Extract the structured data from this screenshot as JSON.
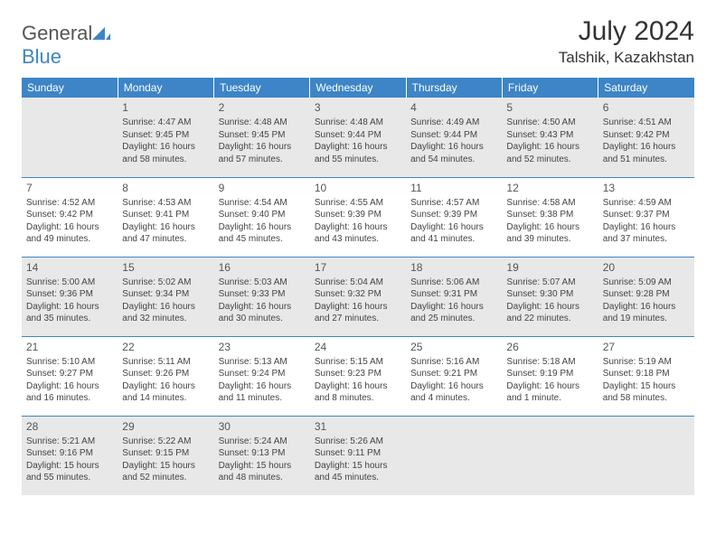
{
  "brand": {
    "text1": "General",
    "text2": "Blue"
  },
  "title": "July 2024",
  "location": "Talshik, Kazakhstan",
  "colors": {
    "header_bg": "#3d85c6",
    "header_fg": "#ffffff",
    "shade_bg": "#e8e8e8",
    "text": "#333333"
  },
  "weekdays": [
    "Sunday",
    "Monday",
    "Tuesday",
    "Wednesday",
    "Thursday",
    "Friday",
    "Saturday"
  ],
  "start_offset": 1,
  "days": [
    {
      "n": 1,
      "sr": "4:47 AM",
      "ss": "9:45 PM",
      "dl": "16 hours and 58 minutes."
    },
    {
      "n": 2,
      "sr": "4:48 AM",
      "ss": "9:45 PM",
      "dl": "16 hours and 57 minutes."
    },
    {
      "n": 3,
      "sr": "4:48 AM",
      "ss": "9:44 PM",
      "dl": "16 hours and 55 minutes."
    },
    {
      "n": 4,
      "sr": "4:49 AM",
      "ss": "9:44 PM",
      "dl": "16 hours and 54 minutes."
    },
    {
      "n": 5,
      "sr": "4:50 AM",
      "ss": "9:43 PM",
      "dl": "16 hours and 52 minutes."
    },
    {
      "n": 6,
      "sr": "4:51 AM",
      "ss": "9:42 PM",
      "dl": "16 hours and 51 minutes."
    },
    {
      "n": 7,
      "sr": "4:52 AM",
      "ss": "9:42 PM",
      "dl": "16 hours and 49 minutes."
    },
    {
      "n": 8,
      "sr": "4:53 AM",
      "ss": "9:41 PM",
      "dl": "16 hours and 47 minutes."
    },
    {
      "n": 9,
      "sr": "4:54 AM",
      "ss": "9:40 PM",
      "dl": "16 hours and 45 minutes."
    },
    {
      "n": 10,
      "sr": "4:55 AM",
      "ss": "9:39 PM",
      "dl": "16 hours and 43 minutes."
    },
    {
      "n": 11,
      "sr": "4:57 AM",
      "ss": "9:39 PM",
      "dl": "16 hours and 41 minutes."
    },
    {
      "n": 12,
      "sr": "4:58 AM",
      "ss": "9:38 PM",
      "dl": "16 hours and 39 minutes."
    },
    {
      "n": 13,
      "sr": "4:59 AM",
      "ss": "9:37 PM",
      "dl": "16 hours and 37 minutes."
    },
    {
      "n": 14,
      "sr": "5:00 AM",
      "ss": "9:36 PM",
      "dl": "16 hours and 35 minutes."
    },
    {
      "n": 15,
      "sr": "5:02 AM",
      "ss": "9:34 PM",
      "dl": "16 hours and 32 minutes."
    },
    {
      "n": 16,
      "sr": "5:03 AM",
      "ss": "9:33 PM",
      "dl": "16 hours and 30 minutes."
    },
    {
      "n": 17,
      "sr": "5:04 AM",
      "ss": "9:32 PM",
      "dl": "16 hours and 27 minutes."
    },
    {
      "n": 18,
      "sr": "5:06 AM",
      "ss": "9:31 PM",
      "dl": "16 hours and 25 minutes."
    },
    {
      "n": 19,
      "sr": "5:07 AM",
      "ss": "9:30 PM",
      "dl": "16 hours and 22 minutes."
    },
    {
      "n": 20,
      "sr": "5:09 AM",
      "ss": "9:28 PM",
      "dl": "16 hours and 19 minutes."
    },
    {
      "n": 21,
      "sr": "5:10 AM",
      "ss": "9:27 PM",
      "dl": "16 hours and 16 minutes."
    },
    {
      "n": 22,
      "sr": "5:11 AM",
      "ss": "9:26 PM",
      "dl": "16 hours and 14 minutes."
    },
    {
      "n": 23,
      "sr": "5:13 AM",
      "ss": "9:24 PM",
      "dl": "16 hours and 11 minutes."
    },
    {
      "n": 24,
      "sr": "5:15 AM",
      "ss": "9:23 PM",
      "dl": "16 hours and 8 minutes."
    },
    {
      "n": 25,
      "sr": "5:16 AM",
      "ss": "9:21 PM",
      "dl": "16 hours and 4 minutes."
    },
    {
      "n": 26,
      "sr": "5:18 AM",
      "ss": "9:19 PM",
      "dl": "16 hours and 1 minute."
    },
    {
      "n": 27,
      "sr": "5:19 AM",
      "ss": "9:18 PM",
      "dl": "15 hours and 58 minutes."
    },
    {
      "n": 28,
      "sr": "5:21 AM",
      "ss": "9:16 PM",
      "dl": "15 hours and 55 minutes."
    },
    {
      "n": 29,
      "sr": "5:22 AM",
      "ss": "9:15 PM",
      "dl": "15 hours and 52 minutes."
    },
    {
      "n": 30,
      "sr": "5:24 AM",
      "ss": "9:13 PM",
      "dl": "15 hours and 48 minutes."
    },
    {
      "n": 31,
      "sr": "5:26 AM",
      "ss": "9:11 PM",
      "dl": "15 hours and 45 minutes."
    }
  ],
  "labels": {
    "sunrise": "Sunrise:",
    "sunset": "Sunset:",
    "daylight": "Daylight:"
  }
}
